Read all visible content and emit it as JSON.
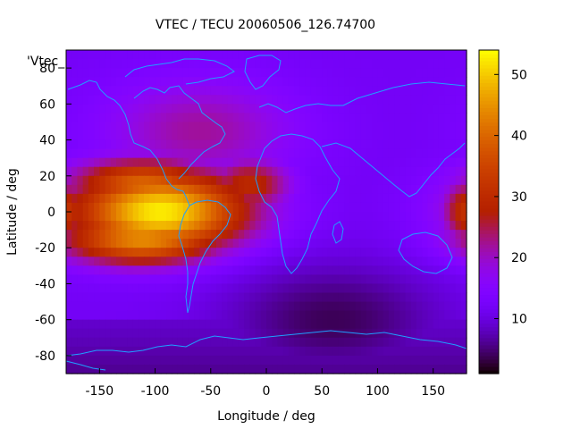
{
  "chart_data": {
    "type": "heatmap",
    "title": "VTEC / TECU 20060506_126.74700",
    "xlabel": "Longitude / deg",
    "ylabel": "Latitude / deg",
    "xlim": [
      -180,
      180
    ],
    "ylim": [
      -90,
      90
    ],
    "xticks": [
      -150,
      -100,
      -50,
      0,
      50,
      100,
      150
    ],
    "yticks": [
      -80,
      -60,
      -40,
      -20,
      0,
      20,
      40,
      60,
      80
    ],
    "colorbar": {
      "min": 1,
      "max": 54,
      "ticks": [
        10,
        20,
        30,
        40,
        50
      ]
    },
    "key_label": "'Vtec_",
    "colormap": "gnuplot-pm3d-default",
    "features": [
      {
        "name": "equatorial-anomaly-americas",
        "lon": -95,
        "lat": 0,
        "peak": 53,
        "spread_lon": 55,
        "spread_lat": 16
      },
      {
        "name": "equatorial-anomaly-americas-south",
        "lon": -110,
        "lat": -15,
        "peak": 45,
        "spread_lon": 50,
        "spread_lat": 10
      },
      {
        "name": "equatorial-anomaly-americas-north",
        "lon": -110,
        "lat": 15,
        "peak": 40,
        "spread_lon": 45,
        "spread_lat": 10
      },
      {
        "name": "west-pacific-anomaly",
        "lon": 180,
        "lat": 0,
        "peak": 32,
        "spread_lon": 15,
        "spread_lat": 12
      },
      {
        "name": "midlatitude-americas",
        "lon": -60,
        "lat": 45,
        "peak": 22,
        "spread_lon": 60,
        "spread_lat": 20
      },
      {
        "name": "africa-north-anomaly",
        "lon": -15,
        "lat": 15,
        "peak": 30,
        "spread_lon": 25,
        "spread_lat": 10
      }
    ],
    "background_tecu": 12,
    "night_minimum": {
      "lon": 60,
      "lat": -60,
      "value": 3
    }
  }
}
